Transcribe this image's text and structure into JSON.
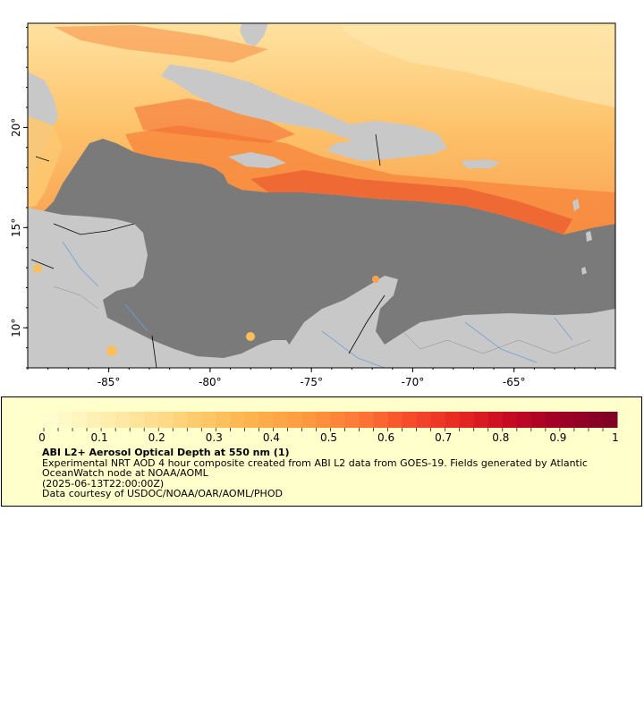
{
  "map": {
    "lon_range": [
      -89,
      -60
    ],
    "lat_range": [
      8,
      25.2
    ],
    "x_ticks": [
      {
        "lon": -85,
        "label": "-85°"
      },
      {
        "lon": -80,
        "label": "-80°"
      },
      {
        "lon": -75,
        "label": "-75°"
      },
      {
        "lon": -70,
        "label": "-70°"
      },
      {
        "lon": -65,
        "label": "-65°"
      }
    ],
    "y_ticks": [
      {
        "lat": 20,
        "label": "20°"
      },
      {
        "lat": 15,
        "label": "15°"
      },
      {
        "lat": 10,
        "label": "10°"
      }
    ],
    "colors": {
      "ocean_nodata": "#7a7a7a",
      "land": "#c8c8c8",
      "rivers": "#6fa0d8",
      "borders": "#000000"
    }
  },
  "legend": {
    "colorbar_min": 0,
    "colorbar_max": 1,
    "colorbar_ticks": [
      "0",
      "0.1",
      "0.2",
      "0.3",
      "0.4",
      "0.5",
      "0.6",
      "0.7",
      "0.8",
      "0.9",
      "1"
    ],
    "colorbar_colors": [
      "#fffcd0",
      "#ffefb0",
      "#fedf90",
      "#fec868",
      "#feb24c",
      "#fd9a40",
      "#fd7a36",
      "#f84e2c",
      "#e62a22",
      "#c70a24",
      "#a00026",
      "#800026"
    ],
    "title": "ABI L2+ Aerosol Optical Depth at 550 nm (1)",
    "line1": "Experimental NRT AOD 4 hour composite created from ABI L2 data from GOES-19. Fields generated by Atlantic",
    "line2": "OceanWatch node at NOAA/AOML",
    "line3": "(2025-06-13T22:00:00Z)",
    "line4": "Data courtesy of USDOC/NOAA/OAR/AOML/PHOD"
  }
}
